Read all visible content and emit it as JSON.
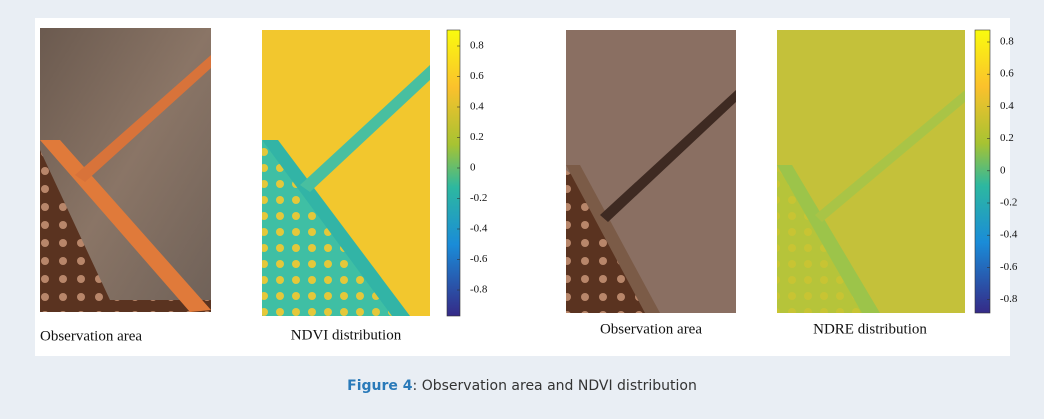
{
  "panels": [
    {
      "caption": "Observation area"
    },
    {
      "caption": "NDVI distribution",
      "colorbar_ticks": [
        0.8,
        0.6,
        0.4,
        0.2,
        0,
        -0.2,
        -0.4,
        -0.6,
        -0.8
      ]
    },
    {
      "caption": "Observation area"
    },
    {
      "caption": "NDRE distribution",
      "colorbar_ticks": [
        0.8,
        0.6,
        0.4,
        0.2,
        0,
        -0.2,
        -0.4,
        -0.6,
        -0.8
      ]
    }
  ],
  "figure_caption": {
    "label": "Figure 4",
    "text": ": Observation area and NDVI distribution"
  }
}
